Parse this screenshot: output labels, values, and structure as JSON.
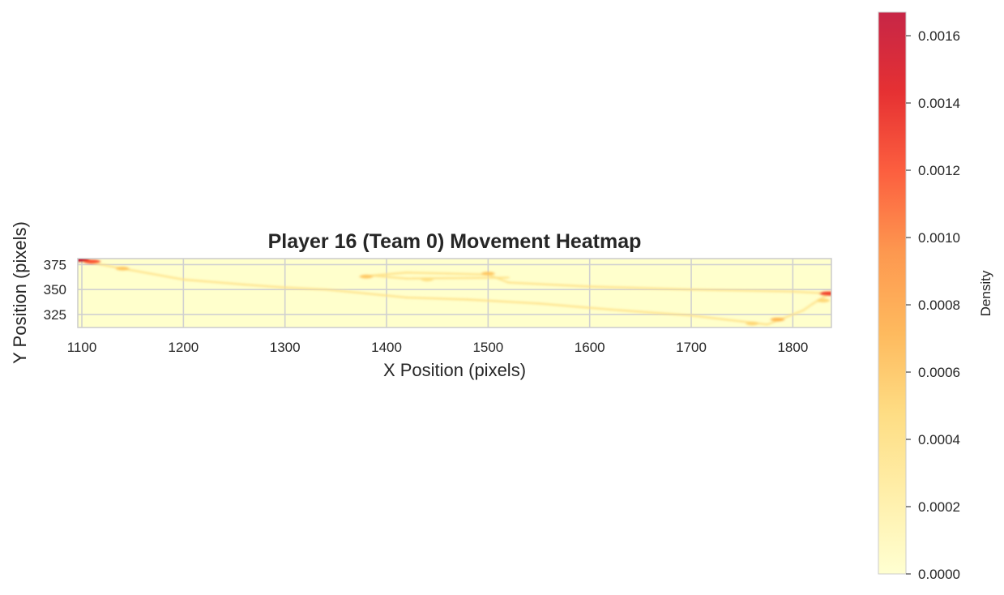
{
  "chart_data": {
    "type": "heatmap",
    "title": "Player 16 (Team 0) Movement Heatmap",
    "xlabel": "X Position (pixels)",
    "ylabel": "Y Position (pixels)",
    "xlim": [
      1096,
      1838
    ],
    "ylim": [
      312,
      381
    ],
    "xticks": [
      1100,
      1200,
      1300,
      1400,
      1500,
      1600,
      1700,
      1800
    ],
    "yticks": [
      325,
      350,
      375
    ],
    "grid": true,
    "colormap": [
      "#ffffcc",
      "#ffeda0",
      "#fed976",
      "#feb24c",
      "#fd8d3c",
      "#fc4e2a",
      "#e31a1c",
      "#bd0026"
    ],
    "colorbar": {
      "label": "Density",
      "range": [
        0,
        0.00167
      ],
      "ticks": [
        0.0,
        0.0002,
        0.0004,
        0.0006,
        0.0008,
        0.001,
        0.0012,
        0.0014,
        0.0016
      ],
      "tick_labels": [
        "0.0000",
        "0.0002",
        "0.0004",
        "0.0006",
        "0.0008",
        "0.0010",
        "0.0012",
        "0.0014",
        "0.0016"
      ]
    },
    "trajectory": [
      {
        "x": 1098,
        "y": 379
      },
      {
        "x": 1140,
        "y": 371
      },
      {
        "x": 1200,
        "y": 360
      },
      {
        "x": 1260,
        "y": 355
      },
      {
        "x": 1300,
        "y": 352
      },
      {
        "x": 1340,
        "y": 350
      },
      {
        "x": 1380,
        "y": 346
      },
      {
        "x": 1420,
        "y": 342
      },
      {
        "x": 1480,
        "y": 340
      },
      {
        "x": 1550,
        "y": 336
      },
      {
        "x": 1620,
        "y": 330
      },
      {
        "x": 1700,
        "y": 324
      },
      {
        "x": 1750,
        "y": 318
      },
      {
        "x": 1775,
        "y": 315
      },
      {
        "x": 1790,
        "y": 321
      },
      {
        "x": 1810,
        "y": 329
      },
      {
        "x": 1820,
        "y": 336
      },
      {
        "x": 1836,
        "y": 346
      },
      {
        "x": 1800,
        "y": 348
      },
      {
        "x": 1700,
        "y": 350
      },
      {
        "x": 1600,
        "y": 353
      },
      {
        "x": 1520,
        "y": 357
      },
      {
        "x": 1500,
        "y": 365
      },
      {
        "x": 1460,
        "y": 366
      },
      {
        "x": 1420,
        "y": 367
      },
      {
        "x": 1385,
        "y": 364
      },
      {
        "x": 1420,
        "y": 361
      },
      {
        "x": 1520,
        "y": 362
      }
    ],
    "hotspots": [
      {
        "x": 1098,
        "y": 380,
        "density": 0.00165
      },
      {
        "x": 1110,
        "y": 378,
        "density": 0.0012
      },
      {
        "x": 1835,
        "y": 346,
        "density": 0.0013
      },
      {
        "x": 1785,
        "y": 320,
        "density": 0.0007
      },
      {
        "x": 1380,
        "y": 363,
        "density": 0.0006
      },
      {
        "x": 1500,
        "y": 366,
        "density": 0.0006
      },
      {
        "x": 1140,
        "y": 371,
        "density": 0.0006
      },
      {
        "x": 1760,
        "y": 316,
        "density": 0.0005
      },
      {
        "x": 1440,
        "y": 360,
        "density": 0.0004
      },
      {
        "x": 1830,
        "y": 339,
        "density": 0.0005
      }
    ]
  }
}
